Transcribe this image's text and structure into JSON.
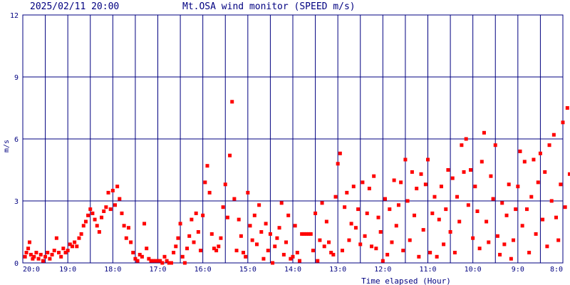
{
  "header": {
    "datetime": "2025/02/11 20:00",
    "title": "Mt.OSA wind monitor (SPEED m/s)"
  },
  "colors": {
    "grid": "#000080",
    "points": "#ff0000",
    "text": "#000080",
    "background": "#ffffff"
  },
  "chart_data": {
    "type": "scatter",
    "title": "Mt.OSA wind monitor (SPEED m/s)",
    "xlabel": "Time elapsed (Hour)",
    "ylabel": "m/s",
    "ylim": [
      0,
      12
    ],
    "yticks": [
      "0",
      "3",
      "6",
      "9",
      "12"
    ],
    "xticks": [
      "20:0",
      "19:0",
      "18:0",
      "17:0",
      "16:0",
      "15:0",
      "14:0",
      "13:0",
      "12:0",
      "11:0",
      "10:0",
      "9:0",
      "8:0"
    ],
    "grid": true,
    "x_unit": "hours elapsed from 20:00 (decreasing clock time to the right)",
    "points": [
      [
        0.05,
        0.3
      ],
      [
        0.08,
        0.5
      ],
      [
        0.12,
        0.7
      ],
      [
        0.15,
        1.0
      ],
      [
        0.18,
        0.4
      ],
      [
        0.22,
        0.2
      ],
      [
        0.25,
        0.3
      ],
      [
        0.3,
        0.5
      ],
      [
        0.35,
        0.2
      ],
      [
        0.4,
        0.4
      ],
      [
        0.45,
        0.1
      ],
      [
        0.5,
        0.3
      ],
      [
        0.55,
        0.5
      ],
      [
        0.6,
        0.2
      ],
      [
        0.65,
        0.4
      ],
      [
        0.7,
        0.6
      ],
      [
        0.75,
        1.2
      ],
      [
        0.8,
        0.5
      ],
      [
        0.85,
        0.3
      ],
      [
        0.9,
        0.7
      ],
      [
        0.95,
        0.5
      ],
      [
        1.0,
        0.6
      ],
      [
        1.05,
        0.9
      ],
      [
        1.1,
        0.8
      ],
      [
        1.15,
        1.0
      ],
      [
        1.2,
        0.8
      ],
      [
        1.25,
        1.2
      ],
      [
        1.3,
        1.4
      ],
      [
        1.35,
        1.8
      ],
      [
        1.4,
        2.0
      ],
      [
        1.45,
        2.3
      ],
      [
        1.5,
        2.6
      ],
      [
        1.55,
        2.4
      ],
      [
        1.6,
        2.1
      ],
      [
        1.65,
        1.8
      ],
      [
        1.7,
        1.5
      ],
      [
        1.75,
        2.2
      ],
      [
        1.8,
        2.5
      ],
      [
        1.85,
        2.7
      ],
      [
        1.9,
        3.4
      ],
      [
        1.95,
        2.6
      ],
      [
        2.0,
        3.5
      ],
      [
        2.05,
        2.8
      ],
      [
        2.1,
        3.7
      ],
      [
        2.15,
        3.1
      ],
      [
        2.2,
        2.4
      ],
      [
        2.25,
        1.8
      ],
      [
        2.3,
        1.2
      ],
      [
        2.35,
        1.7
      ],
      [
        2.4,
        1.0
      ],
      [
        2.45,
        0.5
      ],
      [
        2.5,
        0.2
      ],
      [
        2.55,
        0.1
      ],
      [
        2.6,
        0.4
      ],
      [
        2.65,
        0.3
      ],
      [
        2.7,
        1.9
      ],
      [
        2.75,
        0.7
      ],
      [
        2.8,
        0.2
      ],
      [
        2.85,
        0.1
      ],
      [
        2.9,
        0.1
      ],
      [
        2.95,
        0.1
      ],
      [
        3.0,
        0.1
      ],
      [
        3.05,
        0.1
      ],
      [
        3.1,
        0.0
      ],
      [
        3.15,
        0.3
      ],
      [
        3.2,
        0.1
      ],
      [
        3.25,
        0.0
      ],
      [
        3.3,
        0.0
      ],
      [
        3.35,
        0.5
      ],
      [
        3.4,
        0.8
      ],
      [
        3.45,
        1.2
      ],
      [
        3.5,
        1.9
      ],
      [
        3.55,
        0.3
      ],
      [
        3.6,
        0.0
      ],
      [
        3.65,
        0.7
      ],
      [
        3.7,
        1.3
      ],
      [
        3.75,
        2.1
      ],
      [
        3.8,
        1.0
      ],
      [
        3.85,
        2.4
      ],
      [
        3.9,
        1.5
      ],
      [
        3.95,
        0.6
      ],
      [
        4.0,
        2.3
      ],
      [
        4.05,
        3.9
      ],
      [
        4.1,
        4.7
      ],
      [
        4.15,
        3.4
      ],
      [
        4.2,
        1.4
      ],
      [
        4.25,
        0.7
      ],
      [
        4.3,
        0.6
      ],
      [
        4.35,
        0.8
      ],
      [
        4.4,
        1.2
      ],
      [
        4.45,
        2.7
      ],
      [
        4.5,
        3.8
      ],
      [
        4.55,
        2.2
      ],
      [
        4.6,
        5.2
      ],
      [
        4.65,
        7.8
      ],
      [
        4.7,
        3.1
      ],
      [
        4.75,
        0.6
      ],
      [
        4.8,
        2.1
      ],
      [
        4.85,
        1.3
      ],
      [
        4.9,
        0.5
      ],
      [
        4.95,
        0.3
      ],
      [
        5.0,
        3.4
      ],
      [
        5.05,
        1.8
      ],
      [
        5.1,
        1.1
      ],
      [
        5.15,
        2.3
      ],
      [
        5.2,
        0.9
      ],
      [
        5.25,
        2.8
      ],
      [
        5.3,
        1.5
      ],
      [
        5.35,
        0.2
      ],
      [
        5.4,
        1.9
      ],
      [
        5.45,
        0.6
      ],
      [
        5.5,
        1.4
      ],
      [
        5.55,
        0.0
      ],
      [
        5.6,
        0.8
      ],
      [
        5.65,
        1.2
      ],
      [
        5.7,
        1.7
      ],
      [
        5.75,
        2.9
      ],
      [
        5.8,
        0.4
      ],
      [
        5.85,
        1.0
      ],
      [
        5.9,
        2.3
      ],
      [
        5.95,
        0.2
      ],
      [
        6.0,
        0.3
      ],
      [
        6.05,
        1.8
      ],
      [
        6.1,
        0.5
      ],
      [
        6.15,
        0.1
      ],
      [
        6.2,
        1.4
      ],
      [
        6.25,
        1.4
      ],
      [
        6.3,
        1.4
      ],
      [
        6.35,
        1.4
      ],
      [
        6.4,
        1.4
      ],
      [
        6.45,
        0.6
      ],
      [
        6.5,
        2.4
      ],
      [
        6.55,
        0.1
      ],
      [
        6.6,
        1.1
      ],
      [
        6.65,
        2.9
      ],
      [
        6.7,
        0.8
      ],
      [
        6.75,
        2.0
      ],
      [
        6.8,
        1.0
      ],
      [
        6.85,
        0.5
      ],
      [
        6.9,
        0.4
      ],
      [
        6.95,
        3.2
      ],
      [
        7.0,
        4.8
      ],
      [
        7.05,
        5.3
      ],
      [
        7.1,
        0.6
      ],
      [
        7.15,
        2.7
      ],
      [
        7.2,
        3.4
      ],
      [
        7.25,
        1.1
      ],
      [
        7.3,
        1.9
      ],
      [
        7.35,
        3.7
      ],
      [
        7.4,
        1.7
      ],
      [
        7.45,
        2.6
      ],
      [
        7.5,
        0.9
      ],
      [
        7.55,
        3.9
      ],
      [
        7.6,
        1.3
      ],
      [
        7.65,
        2.4
      ],
      [
        7.7,
        3.6
      ],
      [
        7.75,
        0.8
      ],
      [
        7.8,
        4.2
      ],
      [
        7.85,
        0.7
      ],
      [
        7.9,
        2.2
      ],
      [
        7.95,
        1.5
      ],
      [
        8.0,
        0.1
      ],
      [
        8.05,
        3.1
      ],
      [
        8.1,
        0.4
      ],
      [
        8.15,
        2.6
      ],
      [
        8.2,
        1.0
      ],
      [
        8.25,
        4.0
      ],
      [
        8.3,
        1.8
      ],
      [
        8.35,
        2.8
      ],
      [
        8.4,
        3.9
      ],
      [
        8.45,
        0.6
      ],
      [
        8.5,
        5.0
      ],
      [
        8.55,
        3.0
      ],
      [
        8.6,
        1.1
      ],
      [
        8.65,
        4.4
      ],
      [
        8.7,
        2.3
      ],
      [
        8.75,
        3.6
      ],
      [
        8.8,
        0.3
      ],
      [
        8.85,
        4.3
      ],
      [
        8.9,
        1.6
      ],
      [
        8.95,
        3.8
      ],
      [
        9.0,
        5.0
      ],
      [
        9.05,
        0.5
      ],
      [
        9.1,
        2.4
      ],
      [
        9.15,
        3.2
      ],
      [
        9.2,
        0.3
      ],
      [
        9.25,
        2.1
      ],
      [
        9.3,
        3.7
      ],
      [
        9.35,
        0.9
      ],
      [
        9.4,
        2.6
      ],
      [
        9.45,
        4.5
      ],
      [
        9.5,
        1.5
      ],
      [
        9.55,
        4.1
      ],
      [
        9.6,
        0.5
      ],
      [
        9.65,
        3.2
      ],
      [
        9.7,
        2.0
      ],
      [
        9.75,
        5.7
      ],
      [
        9.8,
        4.4
      ],
      [
        9.85,
        6.0
      ],
      [
        9.9,
        2.8
      ],
      [
        9.95,
        4.5
      ],
      [
        10.0,
        1.2
      ],
      [
        10.05,
        3.7
      ],
      [
        10.1,
        2.5
      ],
      [
        10.15,
        0.7
      ],
      [
        10.2,
        4.9
      ],
      [
        10.25,
        6.3
      ],
      [
        10.3,
        2.0
      ],
      [
        10.35,
        1.0
      ],
      [
        10.4,
        4.2
      ],
      [
        10.45,
        3.1
      ],
      [
        10.5,
        5.7
      ],
      [
        10.55,
        1.3
      ],
      [
        10.6,
        0.4
      ],
      [
        10.65,
        2.9
      ],
      [
        10.7,
        0.9
      ],
      [
        10.75,
        2.3
      ],
      [
        10.8,
        3.8
      ],
      [
        10.85,
        0.2
      ],
      [
        10.9,
        1.1
      ],
      [
        10.95,
        2.6
      ],
      [
        11.0,
        3.7
      ],
      [
        11.05,
        5.4
      ],
      [
        11.1,
        1.8
      ],
      [
        11.15,
        4.9
      ],
      [
        11.2,
        2.6
      ],
      [
        11.25,
        0.5
      ],
      [
        11.3,
        3.2
      ],
      [
        11.35,
        5.0
      ],
      [
        11.4,
        1.4
      ],
      [
        11.45,
        3.9
      ],
      [
        11.5,
        5.3
      ],
      [
        11.55,
        2.1
      ],
      [
        11.6,
        4.4
      ],
      [
        11.65,
        0.8
      ],
      [
        11.7,
        5.7
      ],
      [
        11.75,
        3.0
      ],
      [
        11.8,
        6.2
      ],
      [
        11.85,
        2.2
      ],
      [
        11.9,
        1.1
      ],
      [
        11.95,
        3.8
      ],
      [
        12.0,
        6.8
      ],
      [
        12.05,
        2.7
      ],
      [
        12.1,
        7.5
      ],
      [
        12.15,
        4.3
      ],
      [
        12.2,
        2.0
      ]
    ]
  }
}
